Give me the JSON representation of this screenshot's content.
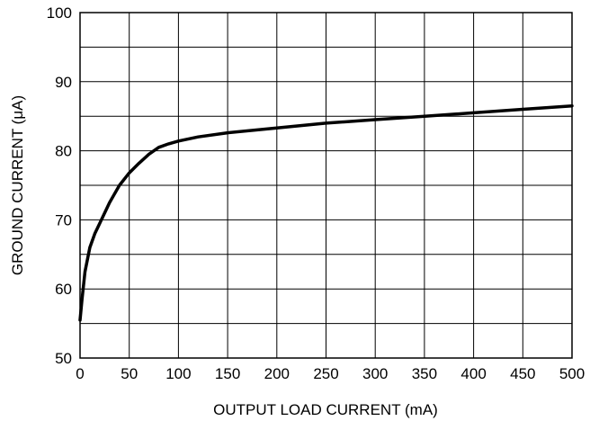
{
  "chart_data": {
    "type": "line",
    "xlabel": "OUTPUT LOAD CURRENT (mA)",
    "ylabel": "GROUND CURRENT (μA)",
    "xlim": [
      0,
      500
    ],
    "ylim": [
      50,
      100
    ],
    "xticks": [
      0,
      50,
      100,
      150,
      200,
      250,
      300,
      350,
      400,
      450,
      500
    ],
    "yticks": [
      50,
      60,
      70,
      80,
      90,
      100
    ],
    "grid": true,
    "legend": "none",
    "series": [
      {
        "color": "#000000",
        "x": [
          0,
          2,
          5,
          10,
          15,
          20,
          30,
          40,
          50,
          60,
          70,
          80,
          90,
          100,
          120,
          150,
          200,
          250,
          300,
          350,
          400,
          450,
          500
        ],
        "values": [
          55.5,
          58.5,
          62.5,
          66,
          68,
          69.5,
          72.5,
          75,
          76.8,
          78.2,
          79.5,
          80.5,
          81,
          81.4,
          82,
          82.6,
          83.3,
          84,
          84.5,
          85,
          85.5,
          86,
          86.5
        ]
      }
    ]
  }
}
